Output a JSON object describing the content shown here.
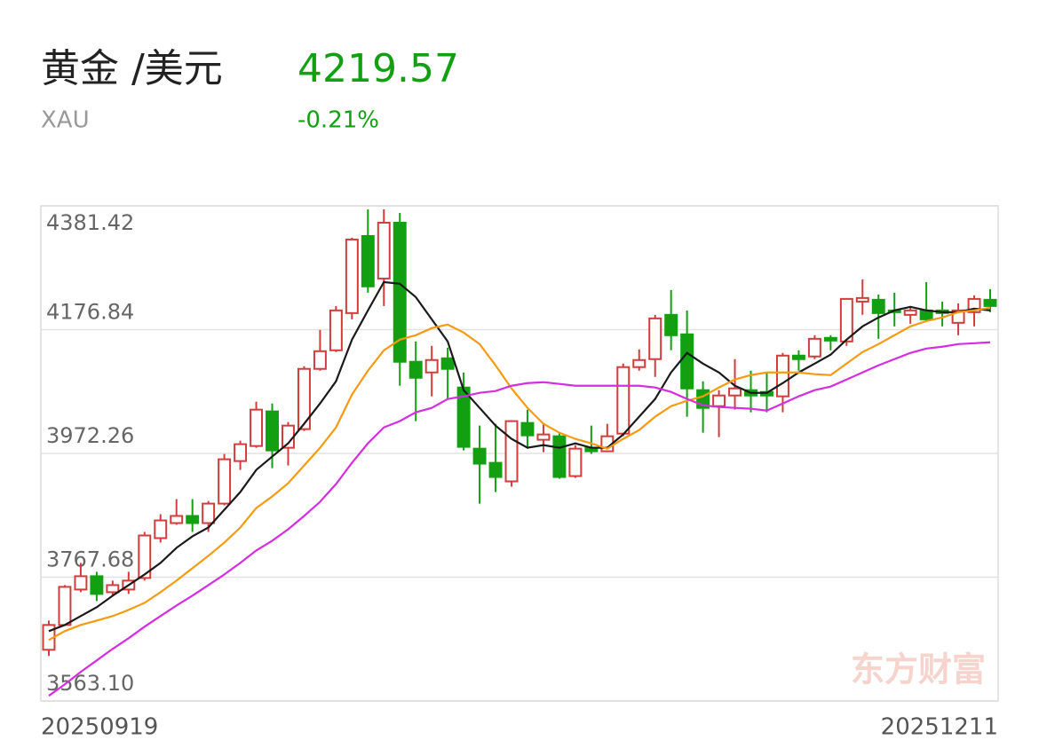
{
  "header": {
    "title": "黄金 /美元",
    "symbol": "XAU",
    "price": 4219.57,
    "change": "-0.21%"
  },
  "chart_data": {
    "type": "candlestick",
    "watermark": "东方财富",
    "categories": [
      "20250919",
      null,
      null,
      null,
      null,
      null,
      null,
      null,
      null,
      null,
      null,
      null,
      null,
      null,
      null,
      null,
      null,
      null,
      null,
      null,
      null,
      null,
      null,
      null,
      null,
      null,
      null,
      null,
      null,
      null,
      null,
      null,
      null,
      null,
      null,
      null,
      null,
      null,
      null,
      null,
      null,
      null,
      null,
      null,
      null,
      null,
      null,
      null,
      null,
      null,
      null,
      null,
      null,
      null,
      null,
      null,
      null,
      null,
      null,
      "20251211"
    ],
    "open": [
      3647.7,
      3688.7,
      3747.3,
      3769.3,
      3742.9,
      3747.3,
      3766.4,
      3832.2,
      3857.1,
      3868.9,
      3857.1,
      3889.3,
      3959.6,
      3984.5,
      4041.7,
      3981.6,
      4012.4,
      4112.0,
      4142.7,
      4204.2,
      4331.6,
      4261.3,
      4353.6,
      4123.7,
      4106.1,
      4129.5,
      4081.2,
      3980.1,
      3956.7,
      3926.0,
      4022.6,
      3994.8,
      4000.6,
      3934.8,
      3981.6,
      3975.8,
      4005.0,
      4114.9,
      4128.1,
      4201.3,
      4169.1,
      4076.8,
      4050.4,
      4068.0,
      4076.8,
      4073.9,
      4066.6,
      4133.9,
      4132.5,
      4163.2,
      4157.3,
      4223.2,
      4226.2,
      4208.6,
      4201.3,
      4208.6,
      4208.6,
      4188.1,
      4205.7,
      4226.2
    ],
    "close": [
      3688.7,
      3751.7,
      3769.3,
      3740.0,
      3754.6,
      3762.0,
      3836.6,
      3861.5,
      3868.9,
      3857.1,
      3889.3,
      3962.6,
      3987.5,
      4044.6,
      3977.2,
      4018.2,
      4112.0,
      4141.2,
      4208.6,
      4325.8,
      4248.3,
      4353.6,
      4123.7,
      4097.3,
      4126.6,
      4112.0,
      3983.1,
      3955.3,
      3933.3,
      4025.6,
      4002.1,
      4003.6,
      3933.3,
      3980.1,
      3975.8,
      4000.6,
      4114.9,
      4126.6,
      4195.4,
      4167.6,
      4079.7,
      4047.5,
      4068.0,
      4079.7,
      4068.0,
      4068.0,
      4133.9,
      4128.1,
      4161.7,
      4158.8,
      4227.6,
      4229.1,
      4204.2,
      4205.7,
      4208.6,
      4193.9,
      4204.2,
      4208.6,
      4227.6,
      4215.9
    ],
    "high": [
      3696.0,
      3754.6,
      3791.3,
      3776.6,
      3762.0,
      3776.6,
      3842.5,
      3871.8,
      3896.7,
      3896.7,
      3893.7,
      3971.4,
      3993.3,
      4057.8,
      4054.8,
      4024.1,
      4116.3,
      4176.4,
      4215.9,
      4328.7,
      4375.5,
      4375.5,
      4369.7,
      4157.3,
      4150.0,
      4147.1,
      4106.1,
      4018.2,
      4021.2,
      4027.0,
      4044.6,
      4022.6,
      4006.5,
      3986.0,
      4018.2,
      4021.2,
      4120.7,
      4144.2,
      4201.3,
      4242.3,
      4208.6,
      4091.5,
      4076.8,
      4128.1,
      4109.0,
      4106.1,
      4138.3,
      4142.7,
      4167.6,
      4167.6,
      4227.6,
      4259.9,
      4235.0,
      4237.9,
      4215.9,
      4255.5,
      4223.2,
      4220.3,
      4233.5,
      4243.8
    ],
    "low": [
      3637.5,
      3687.3,
      3742.9,
      3728.3,
      3737.1,
      3740.0,
      3762.0,
      3824.9,
      3854.2,
      3842.5,
      3842.5,
      3886.4,
      3945.0,
      3981.6,
      3947.9,
      3952.3,
      4009.4,
      4109.0,
      4139.8,
      4193.9,
      4237.9,
      4215.9,
      4084.1,
      4025.6,
      4066.6,
      4062.2,
      3977.2,
      3889.3,
      3908.4,
      3917.2,
      3980.1,
      3974.3,
      3930.4,
      3931.8,
      3971.4,
      3974.3,
      4000.6,
      4109.0,
      4098.8,
      4142.7,
      4032.9,
      4006.5,
      3999.2,
      4044.6,
      4040.2,
      4040.2,
      4040.2,
      4109.0,
      4128.1,
      4142.7,
      4150.0,
      4201.3,
      4161.7,
      4182.2,
      4186.6,
      4191.0,
      4182.2,
      4167.6,
      4182.2,
      4205.7
    ],
    "up_color": "#d23c3c",
    "down_color": "#12a012",
    "ma_lines": [
      {
        "color": "#1a1a1a",
        "values": [
          3678.5,
          3688.7,
          3703.4,
          3718.0,
          3737.1,
          3754.6,
          3772.2,
          3791.3,
          3816.2,
          3835.2,
          3849.8,
          3879.1,
          3908.4,
          3945.0,
          3967.0,
          3988.9,
          4021.2,
          4054.8,
          4091.5,
          4160.3,
          4208.6,
          4255.5,
          4252.6,
          4230.6,
          4193.9,
          4157.3,
          4076.8,
          4047.5,
          4018.2,
          3996.3,
          3981.6,
          3986.0,
          3981.6,
          3988.9,
          3981.6,
          3981.6,
          4003.6,
          4032.9,
          4062.2,
          4106.1,
          4138.3,
          4120.7,
          4106.1,
          4084.1,
          4072.4,
          4072.4,
          4088.5,
          4106.1,
          4120.7,
          4135.4,
          4160.3,
          4182.2,
          4196.9,
          4208.6,
          4214.5,
          4208.6,
          4205.7,
          4205.7,
          4211.5,
          4208.6
        ]
      },
      {
        "color": "#f59a12",
        "values": [
          3663.8,
          3678.5,
          3688.7,
          3696.0,
          3703.4,
          3713.6,
          3725.3,
          3742.9,
          3762.0,
          3782.5,
          3803.0,
          3824.9,
          3849.8,
          3882.0,
          3901.1,
          3923.0,
          3952.3,
          3981.6,
          4015.3,
          4069.5,
          4109.0,
          4142.7,
          4160.3,
          4167.6,
          4179.3,
          4185.2,
          4172.0,
          4152.9,
          4117.8,
          4079.7,
          4047.5,
          4021.2,
          4006.5,
          3996.3,
          3988.9,
          3980.1,
          3996.3,
          4010.9,
          4032.9,
          4050.4,
          4059.2,
          4066.6,
          4081.2,
          4094.4,
          4101.7,
          4106.1,
          4106.1,
          4106.1,
          4103.2,
          4101.7,
          4120.7,
          4139.8,
          4152.9,
          4167.6,
          4182.2,
          4191.0,
          4196.9,
          4205.7,
          4208.6,
          4213.0
        ]
      },
      {
        "color": "#d42ee0",
        "values": [
          3571.6,
          3590.6,
          3611.1,
          3630.1,
          3649.2,
          3666.8,
          3685.8,
          3703.4,
          3720.9,
          3737.1,
          3754.6,
          3772.2,
          3791.3,
          3811.8,
          3827.9,
          3846.9,
          3868.9,
          3892.3,
          3921.6,
          3956.7,
          3988.9,
          4015.3,
          4025.6,
          4040.2,
          4047.5,
          4062.2,
          4066.6,
          4072.4,
          4075.4,
          4084.1,
          4088.5,
          4090.0,
          4087.1,
          4084.1,
          4084.1,
          4084.1,
          4084.1,
          4084.1,
          4081.2,
          4073.9,
          4062.2,
          4051.9,
          4049.0,
          4047.5,
          4046.1,
          4043.1,
          4054.8,
          4066.6,
          4076.8,
          4082.7,
          4094.4,
          4106.1,
          4117.8,
          4128.1,
          4138.3,
          4145.6,
          4148.6,
          4152.9,
          4154.4,
          4155.9
        ]
      }
    ],
    "ylim": [
      3563.1,
      4381.42
    ],
    "yticks": [
      {
        "value": 3563.1,
        "label": "3563.10"
      },
      3767.68,
      3972.26,
      4176.84,
      4381.42
    ],
    "grid": true
  }
}
